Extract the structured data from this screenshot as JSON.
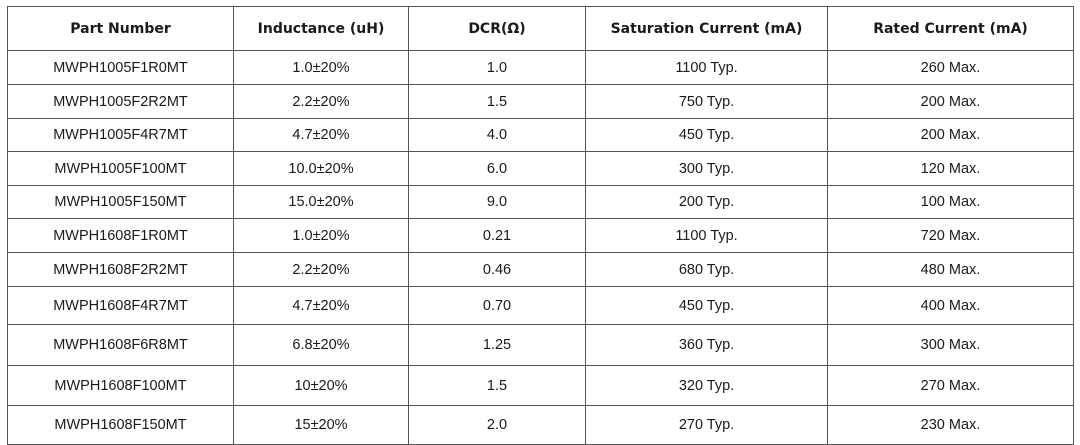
{
  "table": {
    "header": [
      "Part Number",
      "Inductance (uH)",
      "DCR(Ω)",
      "Saturation Current (mA)",
      "Rated Current (mA)"
    ],
    "rows": [
      [
        "MWPH1005F1R0MT",
        "1.0±20%",
        "1.0",
        "1100 Typ.",
        "260 Max."
      ],
      [
        "MWPH1005F2R2MT",
        "2.2±20%",
        "1.5",
        "750 Typ.",
        "200 Max."
      ],
      [
        "MWPH1005F4R7MT",
        "4.7±20%",
        "4.0",
        "450 Typ.",
        "200 Max."
      ],
      [
        "MWPH1005F100MT",
        "10.0±20%",
        "6.0",
        "300 Typ.",
        "120 Max."
      ],
      [
        "MWPH1005F150MT",
        "15.0±20%",
        "9.0",
        "200 Typ.",
        "100 Max."
      ],
      [
        "MWPH1608F1R0MT",
        "1.0±20%",
        "0.21",
        "1100 Typ.",
        "720 Max."
      ],
      [
        "MWPH1608F2R2MT",
        "2.2±20%",
        "0.46",
        "680 Typ.",
        "480 Max."
      ],
      [
        "MWPH1608F4R7MT",
        "4.7±20%",
        "0.70",
        "450 Typ.",
        "400 Max."
      ],
      [
        "MWPH1608F6R8MT",
        "6.8±20%",
        "1.25",
        "360 Typ.",
        "300 Max."
      ],
      [
        "MWPH1608F100MT",
        "10±20%",
        "1.5",
        "320 Typ.",
        "270 Max."
      ],
      [
        "MWPH1608F150MT",
        "15±20%",
        "2.0",
        "270 Typ.",
        "230 Max."
      ]
    ]
  }
}
